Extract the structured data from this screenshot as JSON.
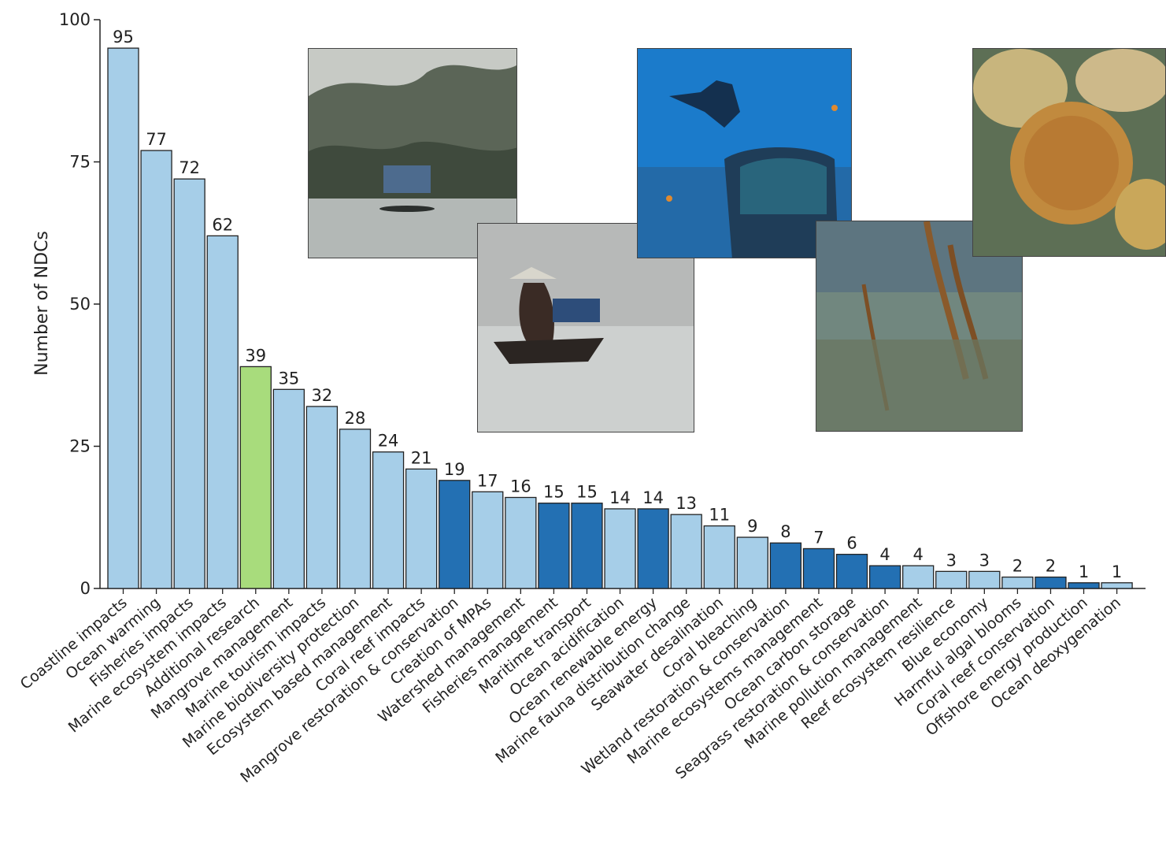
{
  "chart_data": {
    "type": "bar",
    "ylabel": "Number of NDCs",
    "xlabel": "",
    "ylim": [
      0,
      100
    ],
    "yticks": [
      0,
      25,
      50,
      75,
      100
    ],
    "grid": false,
    "categories": [
      "Coastline impacts",
      "Ocean warming",
      "Fisheries impacts",
      "Marine ecosystem impacts",
      "Additional research",
      "Mangrove management",
      "Marine tourism impacts",
      "Marine biodiversity protection",
      "Ecosystem based management",
      "Coral reef impacts",
      "Mangrove restoration & conservation",
      "Creation of MPAs",
      "Watershed management",
      "Fisheries management",
      "Maritime transport",
      "Ocean acidification",
      "Ocean renewable energy",
      "Marine fauna distribution change",
      "Seawater desalination",
      "Coral bleaching",
      "Wetland restoration & conservation",
      "Marine ecosystems management",
      "Ocean carbon storage",
      "Seagrass restoration & conservation",
      "Marine pollution management",
      "Reef ecosystem resilience",
      "Blue economy",
      "Harmful algal blooms",
      "Coral reef conservation",
      "Offshore energy production",
      "Ocean deoxygenation"
    ],
    "values": [
      95,
      77,
      72,
      62,
      39,
      35,
      32,
      28,
      24,
      21,
      19,
      17,
      16,
      15,
      15,
      14,
      14,
      13,
      11,
      9,
      8,
      7,
      6,
      4,
      4,
      3,
      3,
      2,
      2,
      1,
      1
    ],
    "bar_groups": [
      "light",
      "light",
      "light",
      "light",
      "green",
      "light",
      "light",
      "light",
      "light",
      "light",
      "dark",
      "light",
      "light",
      "dark",
      "dark",
      "light",
      "dark",
      "light",
      "light",
      "light",
      "dark",
      "dark",
      "dark",
      "dark",
      "light",
      "light",
      "light",
      "light",
      "dark",
      "dark",
      "light"
    ],
    "colors": {
      "light": "#a6cee8",
      "green": "#a8dc7c",
      "dark": "#2370b3",
      "outline": "#222222"
    }
  },
  "photos": [
    {
      "name": "river-village-photo",
      "bg": "linear-gradient(180deg,#c9ccc6 0%,#7d837a 22%,#4c5547 45%,#9aa09b 62%,#b9bdba 100%)"
    },
    {
      "name": "boat-fisher-photo",
      "bg": "linear-gradient(180deg,#a4a7a6 0%,#b5b7b6 40%,#c3c5c4 55%,#d8dadb 100%)"
    },
    {
      "name": "scuba-diver-photo",
      "bg": "linear-gradient(180deg,#1c74c6 0%,#1a86d4 45%,#2a6fa6 75%,#1d3f66 100%)"
    },
    {
      "name": "mangrove-fish-photo",
      "bg": "linear-gradient(180deg,#5f7783 0%,#6e847c 40%,#7f8a6e 70%,#5b6247 100%)"
    },
    {
      "name": "brain-coral-photo",
      "bg": "radial-gradient(circle at 45% 55%,#c9923f 0%,#b87d33 28%,#7b6a44 45%,#4e6156 70%,#6b7b59 100%)"
    }
  ]
}
